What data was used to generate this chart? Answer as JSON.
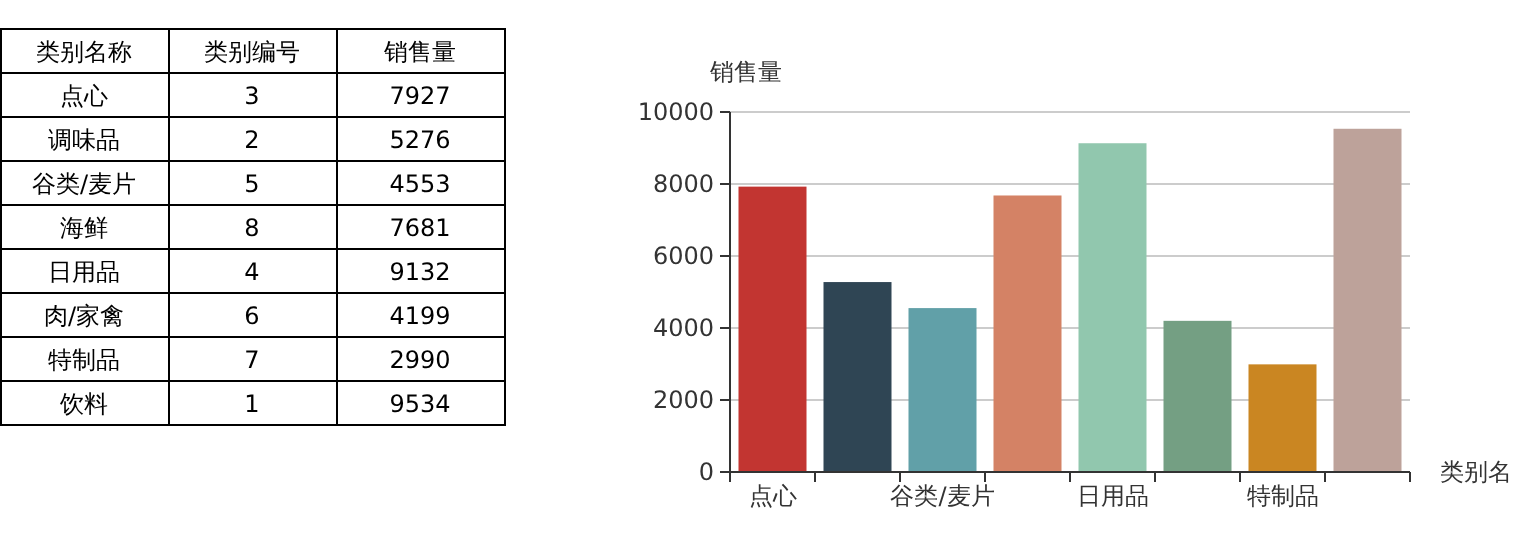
{
  "chart_data": [
    {
      "type": "other",
      "categories": [
        "类别名称",
        "类别编号",
        "销售量"
      ],
      "annotations": [
        "点心",
        "3",
        "7927",
        "调味品",
        "2",
        "5276",
        "谷类/麦片",
        "5",
        "4553",
        "海鲜",
        "8",
        "7681",
        "日用品",
        "4",
        "9132",
        "肉/家禽",
        "6",
        "4199",
        "特制品",
        "7",
        "2990",
        "饮料",
        "1",
        "9534"
      ]
    },
    {
      "type": "bar",
      "ylabel": "销售量",
      "xlabel": "类别名",
      "categories": [
        "点心",
        null,
        "谷类/麦片",
        null,
        "日用品",
        null,
        "特制品",
        null
      ],
      "values": [
        7927,
        5276,
        4553,
        7681,
        9132,
        4199,
        2990,
        9534
      ],
      "colors": [
        "#c23531",
        "#2f4554",
        "#61a0a8",
        "#d48265",
        "#91c7ae",
        "#749f83",
        "#ca8622",
        "#bda29a"
      ],
      "ylim": [
        0,
        10000
      ],
      "yticks": [
        0,
        2000,
        4000,
        6000,
        8000,
        10000
      ],
      "grid": "y"
    }
  ]
}
